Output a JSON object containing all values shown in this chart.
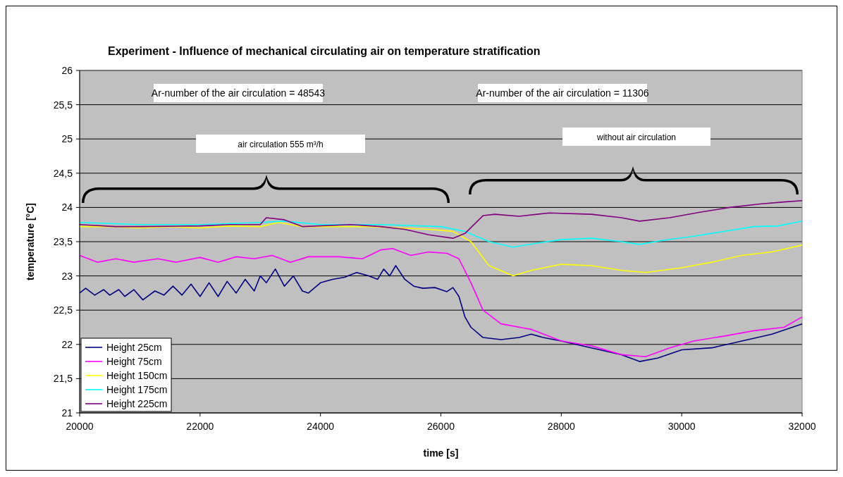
{
  "chart_data": {
    "type": "line",
    "title": "Experiment - Influence of mechanical circulating air on temperature stratification",
    "xlabel": "time [s]",
    "ylabel": "temperature [°C]",
    "xlim": [
      20000,
      32000
    ],
    "xticks": [
      20000,
      22000,
      24000,
      26000,
      28000,
      30000,
      32000
    ],
    "ylim": [
      21,
      26
    ],
    "yticks": [
      21,
      {
        "value": 21.5,
        "label": "21,5"
      },
      22,
      {
        "value": 22.5,
        "label": "22,5"
      },
      23,
      {
        "value": 23.5,
        "label": "23,5"
      },
      24,
      {
        "value": 24.5,
        "label": "24,5"
      },
      25,
      {
        "value": 25.5,
        "label": "25,5"
      },
      26
    ],
    "grid": "y",
    "legend": "bottom left",
    "marker": "none",
    "line_style": "solid",
    "annotations": [
      "Ar-number of the air circulation = 48543",
      "Ar-number of the air circulation = 11306",
      "air circulation 555 m³/h",
      "without air circulation"
    ],
    "series": [
      {
        "name": "Height 25cm",
        "color": "#000080",
        "x": [
          20000,
          20100,
          20250,
          20400,
          20500,
          20650,
          20750,
          20900,
          21050,
          21250,
          21400,
          21550,
          21700,
          21850,
          22000,
          22150,
          22300,
          22450,
          22600,
          22750,
          22900,
          23000,
          23100,
          23250,
          23400,
          23550,
          23700,
          23800,
          24000,
          24200,
          24400,
          24600,
          24800,
          24950,
          25050,
          25150,
          25250,
          25400,
          25550,
          25700,
          25900,
          26100,
          26200,
          26300,
          26400,
          26500,
          26700,
          27000,
          27300,
          27500,
          27700,
          28000,
          28500,
          29000,
          29300,
          29600,
          30000,
          30500,
          31000,
          31500,
          32000
        ],
        "values": [
          22.75,
          22.82,
          22.72,
          22.8,
          22.72,
          22.8,
          22.7,
          22.8,
          22.65,
          22.78,
          22.72,
          22.85,
          22.72,
          22.88,
          22.7,
          22.9,
          22.7,
          22.92,
          22.75,
          22.95,
          22.78,
          23.0,
          22.9,
          23.1,
          22.85,
          23.0,
          22.78,
          22.75,
          22.9,
          22.95,
          22.98,
          23.05,
          23.0,
          22.95,
          23.1,
          23.0,
          23.15,
          22.95,
          22.85,
          22.82,
          22.83,
          22.77,
          22.83,
          22.7,
          22.4,
          22.25,
          22.1,
          22.07,
          22.1,
          22.15,
          22.1,
          22.05,
          21.95,
          21.85,
          21.75,
          21.8,
          21.92,
          21.95,
          22.05,
          22.15,
          22.3
        ]
      },
      {
        "name": "Height 75cm",
        "color": "#ff00ff",
        "x": [
          20000,
          20300,
          20600,
          20900,
          21300,
          21600,
          22000,
          22300,
          22600,
          22900,
          23200,
          23500,
          23800,
          24300,
          24700,
          25000,
          25200,
          25500,
          25800,
          26100,
          26300,
          26500,
          26700,
          27000,
          27500,
          28000,
          28500,
          29000,
          29400,
          29800,
          30200,
          30700,
          31200,
          31700,
          32000
        ],
        "values": [
          23.3,
          23.2,
          23.25,
          23.2,
          23.25,
          23.2,
          23.27,
          23.2,
          23.28,
          23.25,
          23.3,
          23.2,
          23.28,
          23.28,
          23.25,
          23.38,
          23.4,
          23.3,
          23.35,
          23.33,
          23.25,
          22.9,
          22.5,
          22.3,
          22.22,
          22.05,
          21.98,
          21.85,
          21.82,
          21.95,
          22.05,
          22.12,
          22.2,
          22.25,
          22.4
        ]
      },
      {
        "name": "Height 150cm",
        "color": "#ffff00",
        "x": [
          20000,
          20500,
          21000,
          21500,
          22000,
          22500,
          23000,
          23300,
          23700,
          24200,
          24800,
          25300,
          25800,
          26200,
          26500,
          26800,
          27200,
          27500,
          28000,
          28500,
          29000,
          29400,
          30000,
          30500,
          31000,
          31500,
          32000
        ],
        "values": [
          23.72,
          23.72,
          23.7,
          23.72,
          23.7,
          23.73,
          23.72,
          23.78,
          23.72,
          23.72,
          23.72,
          23.7,
          23.68,
          23.65,
          23.5,
          23.15,
          23.0,
          23.08,
          23.17,
          23.15,
          23.08,
          23.05,
          23.12,
          23.2,
          23.3,
          23.35,
          23.45
        ]
      },
      {
        "name": "Height 175cm",
        "color": "#00ffff",
        "x": [
          20000,
          21000,
          22000,
          23000,
          23400,
          24000,
          25000,
          26000,
          26400,
          26800,
          27200,
          27600,
          28000,
          28500,
          29000,
          29300,
          29700,
          30200,
          30700,
          31200,
          31600,
          32000
        ],
        "values": [
          23.78,
          23.75,
          23.75,
          23.78,
          23.8,
          23.75,
          23.75,
          23.72,
          23.65,
          23.5,
          23.42,
          23.48,
          23.53,
          23.55,
          23.5,
          23.46,
          23.52,
          23.58,
          23.65,
          23.72,
          23.73,
          23.8
        ]
      },
      {
        "name": "Height 225cm",
        "color": "#800080",
        "x": [
          20000,
          20600,
          21000,
          22000,
          22500,
          23000,
          23100,
          23400,
          23700,
          24500,
          25000,
          25400,
          25800,
          26200,
          26400,
          26700,
          26900,
          27300,
          27800,
          28500,
          29000,
          29300,
          29800,
          30300,
          30800,
          31300,
          31700,
          32000
        ],
        "values": [
          23.75,
          23.72,
          23.72,
          23.73,
          23.75,
          23.75,
          23.85,
          23.82,
          23.72,
          23.75,
          23.72,
          23.68,
          23.6,
          23.55,
          23.62,
          23.88,
          23.9,
          23.87,
          23.92,
          23.9,
          23.85,
          23.8,
          23.85,
          23.93,
          24.0,
          24.05,
          24.08,
          24.1
        ]
      }
    ]
  }
}
